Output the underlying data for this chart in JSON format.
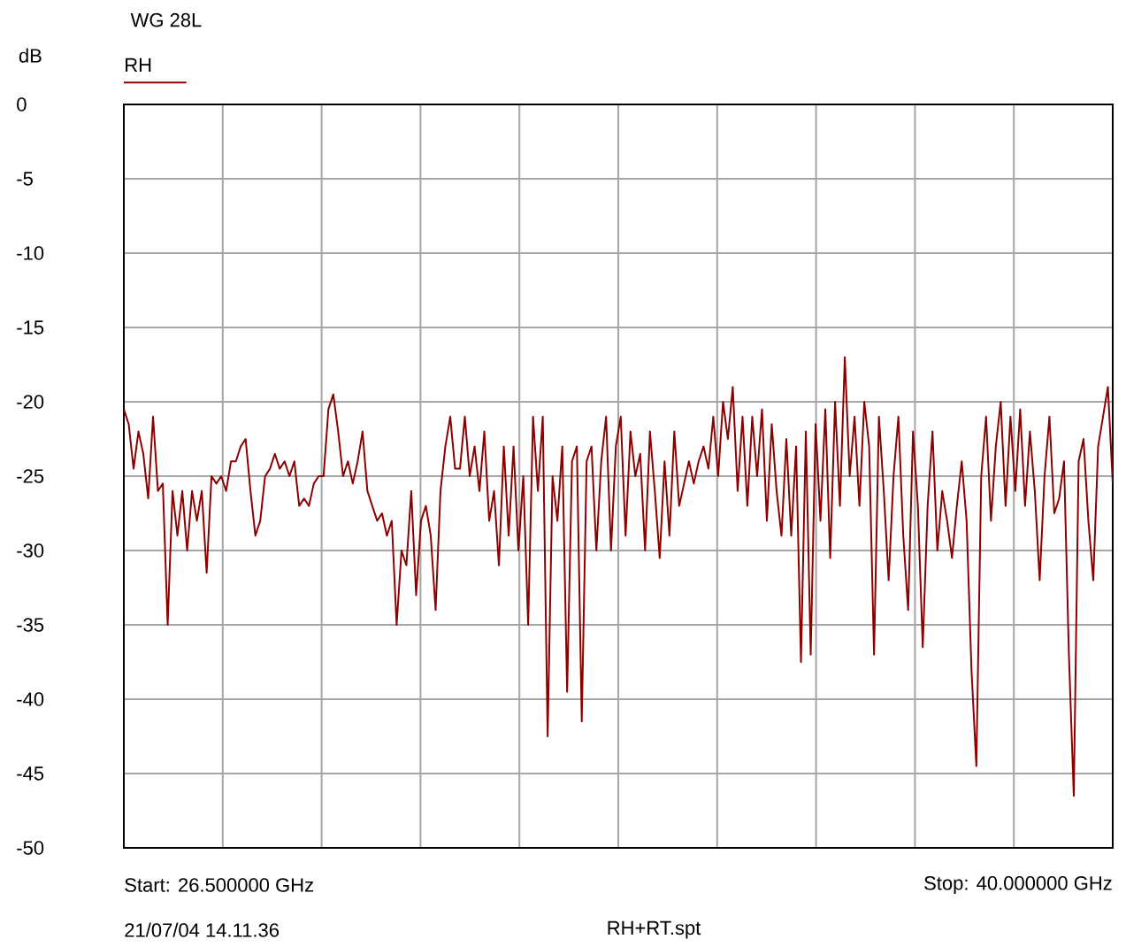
{
  "chart_data": {
    "type": "line",
    "title": "WG 28L",
    "ylabel": "dB",
    "annotations": [
      "Start: 26.500000 GHz",
      "Stop: 40.000000 GHz",
      "21/07/04 14.11.36",
      "RH+RT.spt"
    ],
    "categories": [
      null,
      null,
      null,
      null,
      null,
      null,
      null,
      null,
      null,
      null,
      null,
      null,
      null,
      null,
      null,
      null,
      null,
      null,
      null,
      null,
      null,
      null,
      null,
      null,
      null,
      null,
      null,
      null,
      null,
      null,
      null,
      null,
      null,
      null,
      null,
      null,
      null,
      null,
      null,
      null,
      null,
      null,
      null,
      null,
      null,
      null,
      null,
      null,
      null,
      null,
      null,
      null,
      null,
      null,
      null,
      null,
      null,
      null,
      null,
      null,
      null,
      null,
      null,
      null,
      null,
      null,
      null,
      null,
      null,
      null,
      null,
      null,
      null,
      null,
      null,
      null,
      null,
      null,
      null,
      null,
      null,
      null,
      null,
      null,
      null,
      null,
      null,
      null,
      null,
      null,
      null,
      null,
      null,
      null,
      null,
      null,
      null,
      null,
      null,
      null,
      null,
      null,
      null,
      null,
      null,
      null,
      null,
      null,
      null,
      null,
      null,
      null,
      null,
      null,
      null,
      null,
      null,
      null,
      null,
      null,
      null,
      null,
      null,
      null,
      null,
      null,
      null,
      null,
      null,
      null,
      null,
      null,
      null,
      null,
      null,
      null,
      null,
      null,
      null,
      null,
      null,
      null,
      null,
      null,
      null,
      null,
      null,
      null,
      null,
      null,
      null,
      null,
      null,
      null,
      null,
      null,
      null,
      null,
      null,
      null,
      null,
      null,
      null,
      null,
      null,
      null,
      null,
      null,
      null,
      null,
      null,
      null,
      null,
      null,
      null,
      null,
      null,
      null,
      null,
      null,
      null,
      null,
      null,
      null,
      null,
      null,
      null,
      null,
      null,
      null,
      null,
      null,
      null,
      null,
      null,
      null,
      null,
      null,
      null,
      null,
      null,
      null,
      null,
      null
    ],
    "ylim": [
      -50,
      0
    ],
    "yticks": [
      0,
      -5,
      -10,
      -15,
      -20,
      -25,
      -30,
      -35,
      -40,
      -45,
      -50
    ],
    "tick_labels": "y",
    "grid": true,
    "legend": "top left",
    "series": [
      {
        "name": "RH",
        "color": "#8b0000",
        "values": [
          -20.5,
          -21.5,
          -24.5,
          -22,
          -23.5,
          -26.5,
          -21,
          -26,
          -25.5,
          -35,
          -26,
          -29,
          -26,
          -30,
          -26,
          -28,
          -26,
          -31.5,
          -25,
          -25.5,
          -25,
          -26,
          -24,
          -24,
          -23,
          -22.5,
          -26,
          -29,
          -28,
          -25,
          -24.5,
          -23.5,
          -24.5,
          -24,
          -25,
          -24,
          -27,
          -26.5,
          -27,
          -25.5,
          -25,
          -25,
          -20.5,
          -19.5,
          -22,
          -25,
          -24,
          -25.5,
          -24,
          -22,
          -26,
          -27,
          -28,
          -27.5,
          -29,
          -28,
          -35,
          -30,
          -31,
          -26,
          -33,
          -28,
          -27,
          -29,
          -34,
          -26,
          -23,
          -21,
          -24.5,
          -24.5,
          -21,
          -25,
          -23,
          -26,
          -22,
          -28,
          -26,
          -31,
          -23,
          -29,
          -23,
          -30,
          -25,
          -35,
          -21,
          -26,
          -21,
          -42.5,
          -25,
          -28,
          -23,
          -39.5,
          -24,
          -23,
          -41.5,
          -24,
          -23,
          -30,
          -24,
          -21,
          -30,
          -23,
          -21,
          -29,
          -22,
          -25,
          -23.5,
          -30,
          -22,
          -26,
          -30.5,
          -24,
          -29,
          -22,
          -27,
          -25.5,
          -24,
          -25.5,
          -24,
          -23,
          -24.5,
          -21,
          -25,
          -20,
          -22.5,
          -19,
          -26,
          -21,
          -27,
          -21,
          -25,
          -20.5,
          -28,
          -21.5,
          -26,
          -29,
          -22.5,
          -29,
          -23,
          -37.5,
          -22,
          -37,
          -21.5,
          -28,
          -20.5,
          -30.5,
          -20,
          -27,
          -17,
          -25,
          -21,
          -27,
          -20,
          -23,
          -37,
          -21,
          -26,
          -32,
          -25,
          -21,
          -29,
          -34,
          -22,
          -27,
          -36.5,
          -27,
          -22,
          -30,
          -26,
          -28,
          -30.5,
          -27,
          -24,
          -28,
          -38,
          -44.5,
          -25,
          -21,
          -28,
          -23,
          -20,
          -27,
          -21,
          -26,
          -20.5,
          -27,
          -22,
          -26,
          -32,
          -25,
          -21,
          -27.5,
          -26.5,
          -24,
          -37,
          -46.5,
          -24,
          -22.5,
          -28,
          -32,
          -23,
          -21,
          -19,
          -25.5
        ]
      }
    ]
  }
}
